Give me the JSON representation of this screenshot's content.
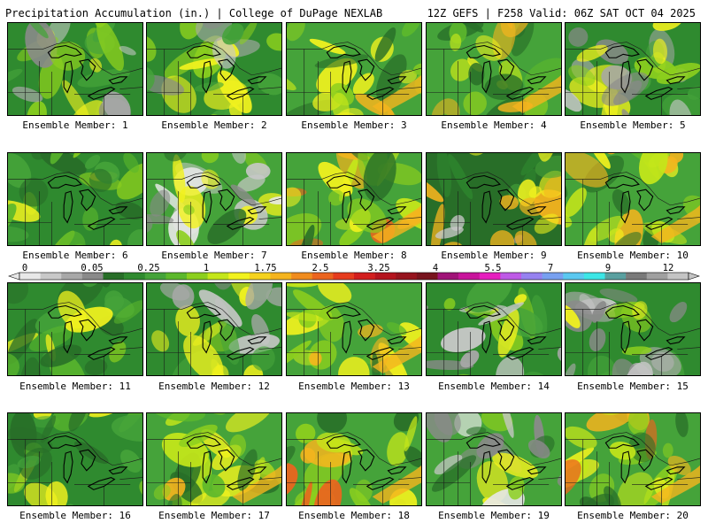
{
  "header": {
    "left_title": "Precipitation Accumulation (in.) | College of DuPage NEXLAB",
    "right_title": "12Z GEFS | F258 Valid: 06Z SAT OCT 04 2025"
  },
  "scale": {
    "labels": [
      "0",
      "0.05",
      "0.25",
      "1",
      "1.75",
      "2.5",
      "3.25",
      "4",
      "5.5",
      "7",
      "9",
      "12"
    ],
    "colors": [
      "#e8e8e8",
      "#c8c8c8",
      "#a8a8a8",
      "#8a8a8a",
      "#286e28",
      "#2f8a2f",
      "#45a33a",
      "#5cb82c",
      "#8ccf1e",
      "#c4e61a",
      "#f2f21e",
      "#f5d21e",
      "#f5b41e",
      "#f08c1e",
      "#eb641e",
      "#e63c1e",
      "#d21e1e",
      "#b4141e",
      "#96141e",
      "#78141e",
      "#a01478",
      "#c8149b",
      "#e61ebe",
      "#be5ae6",
      "#9682f0",
      "#78a0f0",
      "#5ac8f0",
      "#3ce6e6",
      "#5aa0a0",
      "#7a7a7a",
      "#a0a0a0",
      "#c4c4c4"
    ]
  },
  "members": [
    {
      "label": "Ensemble Member: 1",
      "tone": "gray-west"
    },
    {
      "label": "Ensemble Member: 2",
      "tone": "gray-west"
    },
    {
      "label": "Ensemble Member: 3",
      "tone": "yellow"
    },
    {
      "label": "Ensemble Member: 4",
      "tone": "yellow"
    },
    {
      "label": "Ensemble Member: 5",
      "tone": "gray-west"
    },
    {
      "label": "Ensemble Member: 6",
      "tone": "green"
    },
    {
      "label": "Ensemble Member: 7",
      "tone": "gray-north"
    },
    {
      "label": "Ensemble Member: 8",
      "tone": "orange"
    },
    {
      "label": "Ensemble Member: 9",
      "tone": "green-gray"
    },
    {
      "label": "Ensemble Member: 10",
      "tone": "yellow"
    },
    {
      "label": "Ensemble Member: 11",
      "tone": "green"
    },
    {
      "label": "Ensemble Member: 12",
      "tone": "gray-west"
    },
    {
      "label": "Ensemble Member: 13",
      "tone": "yellow"
    },
    {
      "label": "Ensemble Member: 14",
      "tone": "gray-west"
    },
    {
      "label": "Ensemble Member: 15",
      "tone": "gray-west"
    },
    {
      "label": "Ensemble Member: 16",
      "tone": "green"
    },
    {
      "label": "Ensemble Member: 17",
      "tone": "yellow"
    },
    {
      "label": "Ensemble Member: 18",
      "tone": "orange"
    },
    {
      "label": "Ensemble Member: 19",
      "tone": "gray-north"
    },
    {
      "label": "Ensemble Member: 20",
      "tone": "orange"
    }
  ]
}
